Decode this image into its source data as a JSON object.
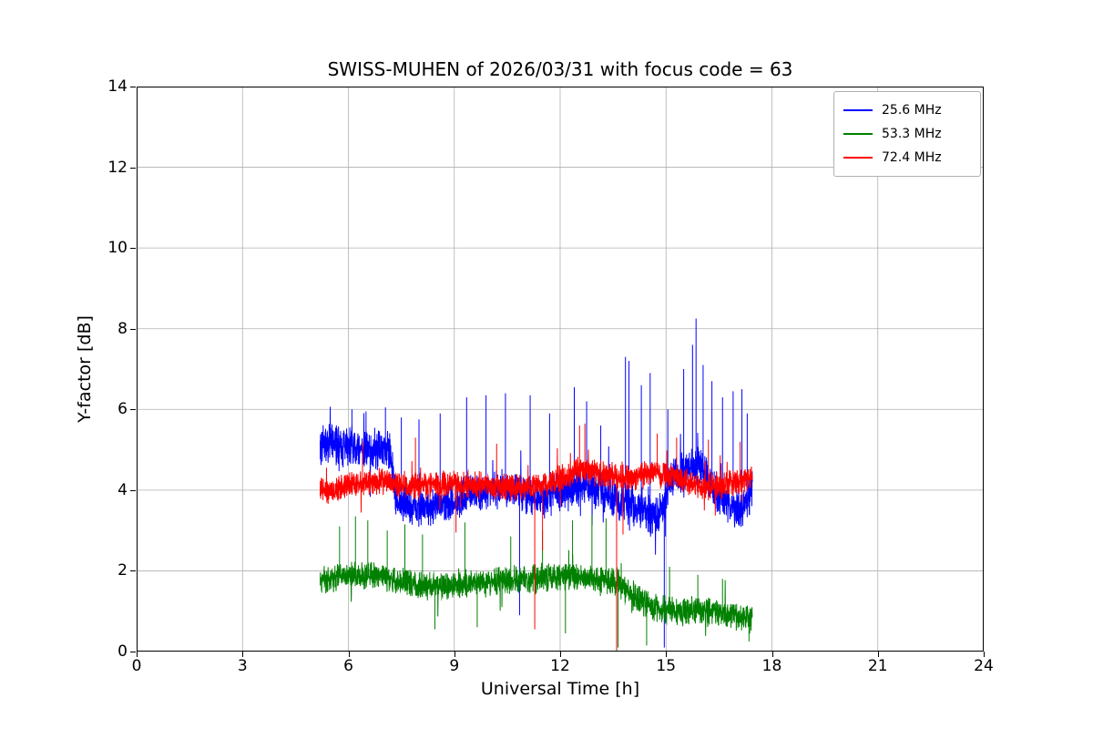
{
  "chart_data": {
    "type": "line",
    "title": "SWISS-MUHEN of 2026/03/31 with focus code = 63",
    "xlabel": "Universal Time [h]",
    "ylabel": "Y-factor [dB]",
    "xlim": [
      0,
      24
    ],
    "ylim": [
      0,
      14
    ],
    "xticks": [
      0,
      3,
      6,
      9,
      12,
      15,
      18,
      21,
      24
    ],
    "yticks": [
      0,
      2,
      4,
      6,
      8,
      10,
      12,
      14
    ],
    "grid": true,
    "grid_color": "#b0b0b0",
    "legend_position": "upper right",
    "data_x_range": [
      5.2,
      17.45
    ],
    "series": [
      {
        "name": "25.6 MHz",
        "color": "#0000ff",
        "seed": 7,
        "xstart": 5.2,
        "xend": 17.45,
        "noise": 0.55,
        "trend": [
          [
            5.2,
            5.15
          ],
          [
            6.3,
            5.05
          ],
          [
            7.2,
            4.95
          ],
          [
            7.35,
            3.7
          ],
          [
            8.3,
            3.55
          ],
          [
            9.2,
            3.8
          ],
          [
            9.8,
            4.0
          ],
          [
            10.6,
            4.05
          ],
          [
            11.3,
            3.75
          ],
          [
            12.0,
            3.95
          ],
          [
            12.8,
            4.15
          ],
          [
            13.4,
            3.85
          ],
          [
            14.1,
            3.6
          ],
          [
            14.8,
            3.35
          ],
          [
            15.2,
            4.35
          ],
          [
            15.9,
            4.6
          ],
          [
            16.4,
            4.0
          ],
          [
            16.9,
            3.45
          ],
          [
            17.2,
            3.6
          ],
          [
            17.45,
            4.0
          ]
        ],
        "spikes": [
          [
            6.1,
            6.0
          ],
          [
            6.5,
            5.95
          ],
          [
            7.05,
            6.05
          ],
          [
            7.5,
            5.8
          ],
          [
            8.0,
            5.75
          ],
          [
            8.6,
            5.9
          ],
          [
            9.35,
            6.3
          ],
          [
            9.9,
            6.35
          ],
          [
            10.45,
            6.4
          ],
          [
            10.85,
            0.9
          ],
          [
            11.15,
            6.35
          ],
          [
            11.7,
            5.9
          ],
          [
            12.4,
            6.55
          ],
          [
            12.75,
            6.2
          ],
          [
            13.15,
            5.6
          ],
          [
            13.85,
            7.3
          ],
          [
            13.95,
            7.2
          ],
          [
            14.3,
            6.6
          ],
          [
            14.55,
            6.9
          ],
          [
            14.95,
            0.1
          ],
          [
            15.05,
            6.0
          ],
          [
            15.5,
            7.0
          ],
          [
            15.75,
            7.6
          ],
          [
            15.85,
            8.25
          ],
          [
            16.05,
            7.1
          ],
          [
            16.3,
            6.7
          ],
          [
            16.6,
            6.3
          ],
          [
            16.9,
            6.45
          ],
          [
            17.15,
            6.5
          ],
          [
            17.3,
            5.9
          ]
        ]
      },
      {
        "name": "53.3 MHz",
        "color": "#008000",
        "seed": 13,
        "xstart": 5.2,
        "xend": 17.45,
        "noise": 0.4,
        "trend": [
          [
            5.2,
            1.8
          ],
          [
            6.0,
            1.9
          ],
          [
            6.8,
            1.85
          ],
          [
            7.6,
            1.7
          ],
          [
            8.5,
            1.6
          ],
          [
            9.4,
            1.7
          ],
          [
            10.3,
            1.75
          ],
          [
            11.2,
            1.8
          ],
          [
            12.1,
            1.85
          ],
          [
            13.0,
            1.8
          ],
          [
            13.7,
            1.65
          ],
          [
            14.2,
            1.3
          ],
          [
            14.8,
            1.05
          ],
          [
            15.6,
            1.0
          ],
          [
            16.3,
            1.0
          ],
          [
            16.9,
            0.9
          ],
          [
            17.45,
            0.8
          ]
        ],
        "spikes": [
          [
            5.75,
            3.1
          ],
          [
            6.2,
            3.35
          ],
          [
            6.55,
            3.25
          ],
          [
            7.1,
            3.0
          ],
          [
            7.6,
            3.15
          ],
          [
            8.1,
            2.9
          ],
          [
            8.45,
            0.55
          ],
          [
            9.3,
            3.2
          ],
          [
            9.65,
            0.6
          ],
          [
            10.6,
            2.85
          ],
          [
            11.5,
            3.0
          ],
          [
            12.15,
            0.45
          ],
          [
            12.35,
            3.25
          ],
          [
            12.9,
            3.4
          ],
          [
            13.3,
            3.3
          ],
          [
            13.6,
            0.0
          ],
          [
            13.64,
            0.1
          ],
          [
            14.45,
            0.15
          ],
          [
            15.1,
            2.1
          ],
          [
            15.9,
            1.9
          ],
          [
            16.6,
            1.8
          ],
          [
            17.35,
            0.25
          ]
        ]
      },
      {
        "name": "72.4 MHz",
        "color": "#ff0000",
        "seed": 42,
        "xstart": 5.2,
        "xend": 17.45,
        "noise": 0.38,
        "trend": [
          [
            5.2,
            3.95
          ],
          [
            6.0,
            4.1
          ],
          [
            7.0,
            4.2
          ],
          [
            8.0,
            4.1
          ],
          [
            9.0,
            4.15
          ],
          [
            10.0,
            4.1
          ],
          [
            11.0,
            4.05
          ],
          [
            11.8,
            4.2
          ],
          [
            12.5,
            4.5
          ],
          [
            13.2,
            4.4
          ],
          [
            13.9,
            4.25
          ],
          [
            14.6,
            4.45
          ],
          [
            15.2,
            4.35
          ],
          [
            16.0,
            4.1
          ],
          [
            16.7,
            4.15
          ],
          [
            17.45,
            4.35
          ]
        ],
        "spikes": [
          [
            6.4,
            5.2
          ],
          [
            7.9,
            5.3
          ],
          [
            9.05,
            2.95
          ],
          [
            10.2,
            5.15
          ],
          [
            11.28,
            0.55
          ],
          [
            11.5,
            2.5
          ],
          [
            12.55,
            5.6
          ],
          [
            12.7,
            5.65
          ],
          [
            13.6,
            0.05
          ],
          [
            13.78,
            2.9
          ],
          [
            14.75,
            5.4
          ],
          [
            15.3,
            5.3
          ],
          [
            16.2,
            5.25
          ],
          [
            17.1,
            5.2
          ]
        ]
      }
    ]
  }
}
